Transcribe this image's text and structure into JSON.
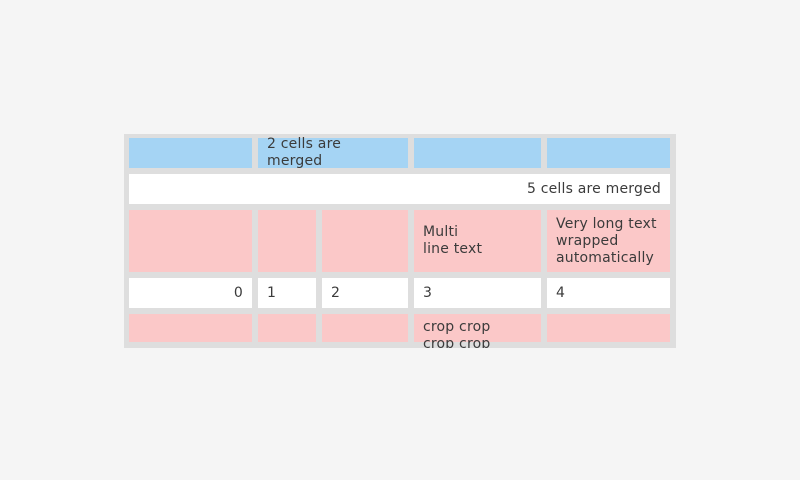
{
  "page": {
    "background_color": "#f5f5f5"
  },
  "table": {
    "grid_color": "#dedede",
    "text_color": "#3b3b3b",
    "row_colors": {
      "header": "#a5d4f4",
      "body_alt": "#fbc8c8",
      "body": "#ffffff"
    },
    "rows": [
      {
        "bg": "blue",
        "cells": [
          {
            "text": ""
          },
          {
            "text": "2 cells are merged",
            "span": 2
          },
          {
            "text": ""
          },
          {
            "text": ""
          }
        ]
      },
      {
        "bg": "white",
        "cells": [
          {
            "text": "5 cells are merged",
            "span": 5,
            "align": "right"
          }
        ]
      },
      {
        "bg": "pink",
        "cells": [
          {
            "text": ""
          },
          {
            "text": ""
          },
          {
            "text": ""
          },
          {
            "text": "Multi\nline text"
          },
          {
            "text": "Very long text\nwrapped\nautomatically"
          }
        ]
      },
      {
        "bg": "white",
        "cells": [
          {
            "text": "0",
            "align": "right"
          },
          {
            "text": "1"
          },
          {
            "text": "2"
          },
          {
            "text": "3"
          },
          {
            "text": "4"
          }
        ]
      },
      {
        "bg": "pink",
        "cells": [
          {
            "text": ""
          },
          {
            "text": ""
          },
          {
            "text": ""
          },
          {
            "text": "crop crop\ncrop crop",
            "cropped": true
          },
          {
            "text": ""
          }
        ]
      }
    ]
  }
}
